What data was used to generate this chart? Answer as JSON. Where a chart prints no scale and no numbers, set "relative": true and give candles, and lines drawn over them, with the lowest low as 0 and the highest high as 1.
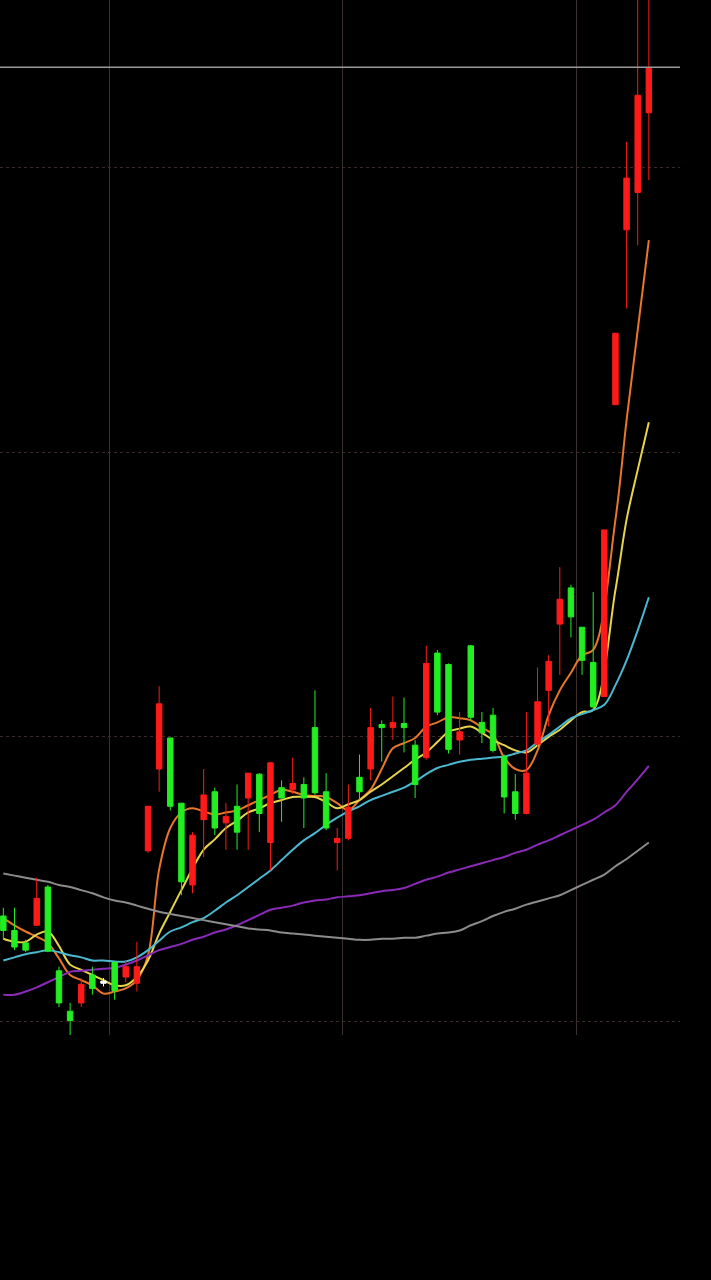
{
  "chart_data": {
    "type": "candlestick",
    "relative": true,
    "grid": true,
    "tick_labels": false,
    "marker": "none",
    "line_style": "solid",
    "categories": [
      null,
      null,
      null,
      null,
      null,
      null,
      null,
      null,
      null,
      null,
      null,
      null,
      null,
      null,
      null,
      null,
      null,
      null,
      null,
      null,
      null,
      null,
      null,
      null,
      null,
      null,
      null,
      null,
      null,
      null,
      null,
      null,
      null,
      null,
      null,
      null,
      null,
      null,
      null,
      null,
      null,
      null,
      null,
      null,
      null,
      null,
      null,
      null,
      null,
      null,
      null,
      null,
      null,
      null,
      null,
      null,
      null,
      null,
      null
    ],
    "ohlc": [
      [
        0.115,
        0.123,
        0.092,
        0.101
      ],
      [
        0.101,
        0.123,
        0.082,
        0.085
      ],
      [
        0.089,
        0.092,
        0.08,
        0.082
      ],
      [
        0.106,
        0.152,
        0.106,
        0.132
      ],
      [
        0.143,
        0.145,
        0.08,
        0.081
      ],
      [
        0.062,
        0.066,
        0.027,
        0.031
      ],
      [
        0.023,
        0.031,
        0,
        0.014
      ],
      [
        0.031,
        0.055,
        0.027,
        0.049
      ],
      [
        0.058,
        0.066,
        0.039,
        0.045
      ],
      [
        0.052,
        0.055,
        0.047,
        0.05
      ],
      [
        0.07,
        0.071,
        0.034,
        0.043
      ],
      [
        0.056,
        0.072,
        0.051,
        0.066
      ],
      [
        0.05,
        0.09,
        0.042,
        0.066
      ],
      [
        0.178,
        0.221,
        0.176,
        0.221
      ],
      [
        0.257,
        0.337,
        0.235,
        0.32
      ],
      [
        0.287,
        0.287,
        0.217,
        0.221
      ],
      [
        0.224,
        0.224,
        0.135,
        0.148
      ],
      [
        0.145,
        0.196,
        0.137,
        0.193
      ],
      [
        0.208,
        0.257,
        0.172,
        0.232
      ],
      [
        0.235,
        0.239,
        0.193,
        0.2
      ],
      [
        0.205,
        0.224,
        0.179,
        0.211
      ],
      [
        0.221,
        0.242,
        0.179,
        0.196
      ],
      [
        0.229,
        0.253,
        0.179,
        0.253
      ],
      [
        0.252,
        0.253,
        0.196,
        0.214
      ],
      [
        0.186,
        0.263,
        0.159,
        0.263
      ],
      [
        0.239,
        0.246,
        0.206,
        0.229
      ],
      [
        0.237,
        0.268,
        0.233,
        0.243
      ],
      [
        0.242,
        0.249,
        0.2,
        0.229
      ],
      [
        0.297,
        0.333,
        0.232,
        0.234
      ],
      [
        0.235,
        0.253,
        0.198,
        0.2
      ],
      [
        0.186,
        0.2,
        0.159,
        0.19
      ],
      [
        0.19,
        0.242,
        0.188,
        0.22
      ],
      [
        0.249,
        0.271,
        0.227,
        0.235
      ],
      [
        0.257,
        0.316,
        0.246,
        0.297
      ],
      [
        0.3,
        0.304,
        0.264,
        0.297
      ],
      [
        0.297,
        0.327,
        0.285,
        0.302
      ],
      [
        0.301,
        0.326,
        0.273,
        0.297
      ],
      [
        0.28,
        0.285,
        0.229,
        0.242
      ],
      [
        0.268,
        0.376,
        0.266,
        0.359
      ],
      [
        0.369,
        0.372,
        0.309,
        0.312
      ],
      [
        0.358,
        0.359,
        0.272,
        0.276
      ],
      [
        0.285,
        0.312,
        0.271,
        0.293
      ],
      [
        0.376,
        0.377,
        0.304,
        0.307
      ],
      [
        0.302,
        0.312,
        0.282,
        0.292
      ],
      [
        0.309,
        0.316,
        0.273,
        0.275
      ],
      [
        0.269,
        0.271,
        0.214,
        0.23
      ],
      [
        0.235,
        0.252,
        0.208,
        0.214
      ],
      [
        0.214,
        0.312,
        0.213,
        0.253
      ],
      [
        0.281,
        0.355,
        0.279,
        0.322
      ],
      [
        0.333,
        0.367,
        0.298,
        0.361
      ],
      [
        0.397,
        0.452,
        0.348,
        0.421
      ],
      [
        0.432,
        0.435,
        0.384,
        0.404
      ],
      [
        0.394,
        0.394,
        0.348,
        0.362
      ],
      [
        0.36,
        0.428,
        0.315,
        0.317
      ],
      [
        0.327,
        0.488,
        0.327,
        0.488
      ],
      [
        0.609,
        0.678,
        0.609,
        0.678
      ],
      [
        0.778,
        0.863,
        0.702,
        0.828
      ],
      [
        0.814,
        1,
        0.763,
        0.908
      ],
      [
        0.891,
        1,
        0.826,
        0.934
      ]
    ],
    "colors": [
      "#22ee22",
      "#22ee22",
      "#22ee22",
      "#ff1a1a",
      "#22ee22",
      "#22ee22",
      "#22ee22",
      "#ff1a1a",
      "#22ee22",
      "#ffffff",
      "#22ee22",
      "#ff1a1a",
      "#ff1a1a",
      "#ff1a1a",
      "#ff1a1a",
      "#22ee22",
      "#22ee22",
      "#ff1a1a",
      "#ff1a1a",
      "#22ee22",
      "#ff1a1a",
      "#22ee22",
      "#ff1a1a",
      "#22ee22",
      "#ff1a1a",
      "#22ee22",
      "#ff1a1a",
      "#22ee22",
      "#22ee22",
      "#22ee22",
      "#ff1a1a",
      "#ff1a1a",
      "#22ee22",
      "#ff1a1a",
      "#22ee22",
      "#ff1a1a",
      "#22ee22",
      "#22ee22",
      "#ff1a1a",
      "#22ee22",
      "#22ee22",
      "#ff1a1a",
      "#22ee22",
      "#22ee22",
      "#22ee22",
      "#22ee22",
      "#22ee22",
      "#ff1a1a",
      "#ff1a1a",
      "#ff1a1a",
      "#ff1a1a",
      "#22ee22",
      "#22ee22",
      "#22ee22",
      "#ff1a1a",
      "#ff1a1a",
      "#ff1a1a",
      "#ff1a1a",
      "#ff1a1a"
    ],
    "series": [
      {
        "type": "line",
        "color": "#e8762b",
        "values": [
          0.113,
          0.106,
          0.1,
          0.095,
          0.089,
          0.074,
          0.058,
          0.053,
          0.048,
          0.04,
          0.042,
          0.045,
          0.053,
          0.077,
          0.16,
          0.2,
          0.215,
          0.219,
          0.216,
          0.213,
          0.215,
          0.217,
          0.222,
          0.227,
          0.232,
          0.237,
          0.235,
          0.232,
          0.231,
          0.23,
          0.224,
          0.217,
          0.227,
          0.237,
          0.257,
          0.277,
          0.282,
          0.287,
          0.298,
          0.302,
          0.307,
          0.306,
          0.304,
          0.297,
          0.29,
          0.268,
          0.257,
          0.256,
          0.275,
          0.309,
          0.333,
          0.35,
          0.367,
          0.372,
          null,
          0.498,
          0.594,
          0.681,
          0.768
        ]
      },
      {
        "type": "line",
        "color": "#e8d44a",
        "values": [
          0.093,
          0.09,
          0.09,
          0.097,
          0.1,
          0.086,
          0.068,
          0.063,
          0.058,
          0.053,
          0.048,
          0.048,
          0.056,
          0.072,
          0.098,
          0.119,
          0.14,
          null,
          0.179,
          0.189,
          0.2,
          0.207,
          0.215,
          0.219,
          0.224,
          0.227,
          0.23,
          0.23,
          0.23,
          0.225,
          0.219,
          0.223,
          0.227,
          0.235,
          0.242,
          0.25,
          0.258,
          0.266,
          0.273,
          0.283,
          0.293,
          0.296,
          0.298,
          0.292,
          0.285,
          0.28,
          0.275,
          0.273,
          0.28,
          0.288,
          0.295,
          0.304,
          0.312,
          0.314,
          null,
          0.43,
          0.498,
          0.546,
          0.592
        ]
      },
      {
        "type": "line",
        "color": "#4bb8d0",
        "values": [
          0.072,
          0.075,
          0.078,
          0.08,
          0.082,
          0.08,
          0.077,
          0.075,
          0.072,
          0.072,
          0.071,
          0.071,
          0.075,
          0.082,
          0.091,
          0.1,
          0.104,
          0.109,
          0.113,
          0.12,
          0.128,
          0.135,
          0.143,
          0.151,
          0.159,
          0.169,
          0.179,
          0.188,
          0.195,
          0.203,
          0.21,
          0.216,
          0.221,
          0.227,
          0.231,
          0.235,
          0.239,
          0.245,
          0.252,
          0.258,
          0.261,
          0.264,
          0.266,
          0.267,
          0.268,
          0.269,
          0.272,
          0.275,
          0.283,
          0.29,
          0.298,
          0.306,
          0.31,
          0.314,
          0.319,
          0.338,
          0.362,
          0.391,
          0.423
        ]
      },
      {
        "type": "line",
        "color": "#8a2bb8",
        "values": [
          0.039,
          0.039,
          0.042,
          0.046,
          0.051,
          0.056,
          0.061,
          0.062,
          0.063,
          0.064,
          0.065,
          0.068,
          0.072,
          0.077,
          0.082,
          0.085,
          0.088,
          0.092,
          0.095,
          0.099,
          0.102,
          0.106,
          0.111,
          0.116,
          0.121,
          0.123,
          0.125,
          0.128,
          0.13,
          0.131,
          0.133,
          0.134,
          0.135,
          0.137,
          0.139,
          0.14,
          0.142,
          0.146,
          0.15,
          0.153,
          0.157,
          0.16,
          0.163,
          0.166,
          0.169,
          0.172,
          0.176,
          0.179,
          0.184,
          0.188,
          0.193,
          0.198,
          0.203,
          0.208,
          0.215,
          0.222,
          0.235,
          0.247,
          0.26
        ]
      },
      {
        "type": "line",
        "color": "#8c8c8c",
        "values": [
          0.156,
          0.154,
          0.152,
          0.15,
          0.148,
          0.145,
          0.143,
          0.14,
          0.137,
          0.133,
          0.13,
          0.128,
          0.125,
          0.122,
          0.119,
          0.117,
          0.115,
          0.113,
          0.111,
          0.109,
          0.107,
          0.105,
          0.103,
          0.102,
          0.101,
          0.099,
          0.098,
          0.097,
          0.096,
          0.095,
          0.094,
          0.093,
          0.092,
          0.092,
          0.093,
          0.093,
          0.094,
          0.094,
          0.096,
          0.098,
          0.099,
          0.101,
          0.106,
          0.11,
          0.115,
          0.119,
          0.122,
          0.126,
          0.129,
          0.132,
          0.135,
          0.14,
          0.145,
          0.15,
          0.155,
          0.163,
          0.17,
          0.178,
          0.186
        ]
      }
    ],
    "ref_lines": [
      {
        "axis": "y",
        "value": 0.935,
        "color": "#9a9a9a"
      }
    ]
  }
}
